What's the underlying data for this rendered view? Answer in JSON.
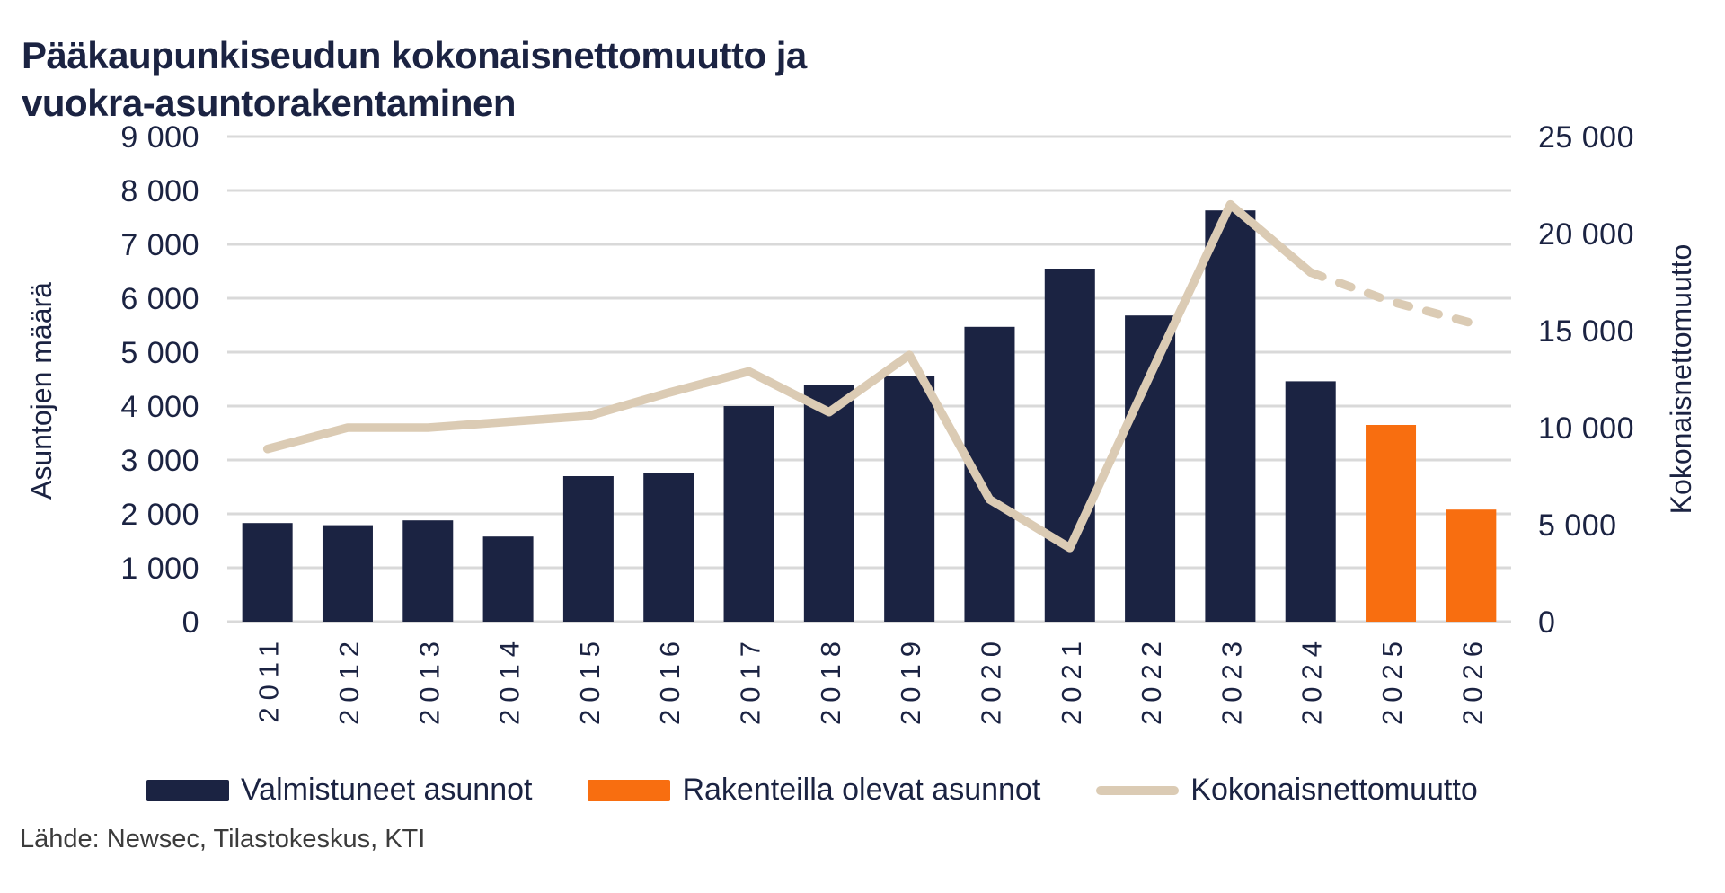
{
  "title": {
    "line1": "Pääkaupunkiseudun kokonaisnettomuutto ja",
    "line2": "vuokra-asuntorakentaminen"
  },
  "source": "Lähde: Newsec, Tilastokeskus, KTI",
  "colors": {
    "navy": "#1B2342",
    "orange": "#F86E10",
    "beige": "#DBCBB4",
    "grid": "#D9D9D9",
    "text_navy": "#1B2342",
    "text_source": "#3C3C3C",
    "background": "#FFFFFF"
  },
  "chart_data": {
    "type": "combo-bar-line",
    "categories": [
      "2011",
      "2012",
      "2013",
      "2014",
      "2015",
      "2016",
      "2017",
      "2018",
      "2019",
      "2020",
      "2021",
      "2022",
      "2023",
      "2024",
      "2025",
      "2026"
    ],
    "left_axis": {
      "label": "Asuntojen määrä",
      "min": 0,
      "max": 9000,
      "tick_labels": [
        "0",
        "1 000",
        "2 000",
        "3 000",
        "4 000",
        "5 000",
        "6 000",
        "7 000",
        "8 000",
        "9 000"
      ],
      "grid": true
    },
    "right_axis": {
      "label": "Kokonaisnettomuutto",
      "min": 0,
      "max": 25000,
      "tick_labels": [
        "0",
        "5 000",
        "10 000",
        "15 000",
        "20 000",
        "25 000"
      ]
    },
    "series": [
      {
        "name": "Valmistuneet asunnot",
        "type": "bar",
        "axis": "left",
        "color": "#1B2342",
        "values": [
          1830,
          1790,
          1880,
          1580,
          2700,
          2760,
          4000,
          4400,
          4550,
          5470,
          6550,
          5680,
          7630,
          4460,
          null,
          null
        ]
      },
      {
        "name": "Rakenteilla olevat asunnot",
        "type": "bar",
        "axis": "left",
        "color": "#F86E10",
        "values": [
          null,
          null,
          null,
          null,
          null,
          null,
          null,
          null,
          null,
          null,
          null,
          null,
          null,
          null,
          3650,
          2080
        ]
      },
      {
        "name": "Kokonaisnettomuutto",
        "type": "line",
        "axis": "right",
        "color": "#DBCBB4",
        "dashed_from_index": 13,
        "values": [
          8900,
          10000,
          10000,
          10300,
          10600,
          11800,
          12900,
          10800,
          13750,
          6300,
          3800,
          12700,
          21500,
          18000,
          16500,
          15400
        ]
      }
    ],
    "legend_position": "bottom",
    "grid": true
  }
}
